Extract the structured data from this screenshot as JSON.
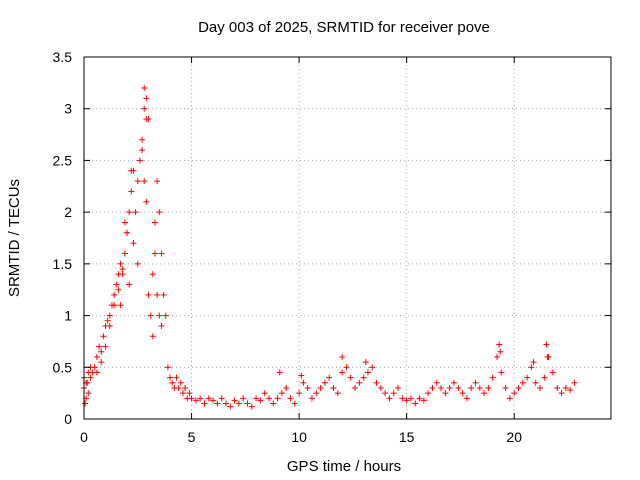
{
  "chart_data": {
    "type": "scatter",
    "title": "Day 003 of 2025, SRMTID for receiver pove",
    "xlabel": "GPS time / hours",
    "ylabel": "SRMTID / TECUs",
    "xlim": [
      0,
      24.5
    ],
    "ylim": [
      0,
      3.5
    ],
    "x_ticks": [
      0,
      5,
      10,
      15,
      20
    ],
    "x_tick_labels": [
      "0",
      "5",
      "10",
      "15",
      "20"
    ],
    "y_ticks": [
      0,
      0.5,
      1,
      1.5,
      2,
      2.5,
      3,
      3.5
    ],
    "y_tick_labels": [
      "0",
      "0.5",
      "1",
      "1.5",
      "2",
      "2.5",
      "3",
      "3.5"
    ],
    "grid": true,
    "marker": "+",
    "color": "#ff0000",
    "series": [
      {
        "name": "SRMTID",
        "x": [
          0.0,
          0.1,
          0.2,
          0.3,
          0.4,
          0.5,
          0.6,
          0.7,
          0.8,
          0.9,
          1.0,
          1.1,
          1.2,
          1.3,
          1.4,
          1.5,
          1.6,
          1.7,
          1.8,
          1.9,
          2.0,
          2.1,
          2.2,
          2.3,
          2.4,
          2.5,
          2.6,
          2.7,
          2.8,
          2.9,
          3.0,
          3.1,
          3.2,
          3.3,
          3.4,
          3.5,
          3.6,
          3.7,
          3.8,
          3.9,
          4.0,
          4.1,
          4.2,
          4.3,
          4.4,
          4.5,
          4.6,
          4.7,
          4.8,
          4.9,
          5.0,
          5.2,
          5.4,
          5.6,
          5.8,
          6.0,
          6.2,
          6.4,
          6.6,
          6.8,
          7.0,
          7.2,
          7.4,
          7.6,
          7.8,
          8.0,
          8.2,
          8.4,
          8.6,
          8.8,
          9.0,
          9.2,
          9.4,
          9.6,
          9.8,
          10.0,
          10.2,
          10.4,
          10.6,
          10.8,
          11.0,
          11.2,
          11.4,
          11.6,
          11.8,
          12.0,
          12.2,
          12.4,
          12.6,
          12.8,
          13.0,
          13.2,
          13.4,
          13.6,
          13.8,
          14.0,
          14.2,
          14.4,
          14.6,
          14.8,
          15.0,
          15.2,
          15.4,
          15.6,
          15.8,
          16.0,
          16.2,
          16.4,
          16.6,
          16.8,
          17.0,
          17.2,
          17.4,
          17.6,
          17.8,
          18.0,
          18.2,
          18.4,
          18.6,
          18.8,
          19.0,
          19.2,
          19.4,
          19.6,
          19.8,
          20.0,
          20.2,
          20.4,
          20.6,
          20.8,
          21.0,
          21.2,
          21.4,
          21.6,
          21.8,
          22.0,
          22.2,
          22.4,
          22.6,
          22.8,
          2.8,
          2.9,
          3.0,
          2.7,
          2.2,
          2.0,
          1.8,
          1.6,
          1.4,
          1.2,
          1.0,
          0.8,
          0.6,
          3.2,
          3.3,
          3.4,
          3.5,
          3.6,
          2.5,
          2.3,
          2.1,
          1.9,
          1.7,
          2.9,
          2.8,
          0.0,
          0.1,
          0.2,
          0.3,
          0.05,
          0.15,
          19.3,
          19.35,
          20.9,
          21.5,
          21.55,
          12.0,
          13.1,
          10.1,
          9.1
        ],
        "y": [
          0.3,
          0.35,
          0.25,
          0.4,
          0.45,
          0.5,
          0.6,
          0.7,
          0.65,
          0.8,
          0.9,
          0.95,
          1.0,
          1.1,
          1.2,
          1.3,
          1.4,
          1.5,
          1.45,
          1.6,
          1.8,
          2.0,
          2.2,
          2.4,
          2.0,
          2.3,
          2.5,
          2.7,
          3.0,
          2.9,
          1.2,
          1.0,
          0.8,
          1.9,
          2.3,
          2.0,
          1.6,
          1.2,
          1.0,
          0.5,
          0.4,
          0.35,
          0.3,
          0.4,
          0.3,
          0.35,
          0.25,
          0.3,
          0.2,
          0.25,
          0.2,
          0.18,
          0.2,
          0.15,
          0.2,
          0.18,
          0.15,
          0.2,
          0.15,
          0.12,
          0.18,
          0.15,
          0.2,
          0.15,
          0.12,
          0.2,
          0.18,
          0.25,
          0.2,
          0.15,
          0.2,
          0.25,
          0.3,
          0.2,
          0.15,
          0.25,
          0.35,
          0.3,
          0.2,
          0.25,
          0.3,
          0.35,
          0.4,
          0.3,
          0.25,
          0.45,
          0.5,
          0.4,
          0.3,
          0.35,
          0.4,
          0.45,
          0.5,
          0.35,
          0.3,
          0.25,
          0.2,
          0.25,
          0.3,
          0.2,
          0.18,
          0.2,
          0.15,
          0.2,
          0.18,
          0.25,
          0.3,
          0.35,
          0.3,
          0.25,
          0.3,
          0.35,
          0.3,
          0.25,
          0.2,
          0.3,
          0.35,
          0.3,
          0.25,
          0.3,
          0.4,
          0.6,
          0.45,
          0.3,
          0.2,
          0.25,
          0.3,
          0.35,
          0.4,
          0.5,
          0.35,
          0.3,
          0.4,
          0.6,
          0.45,
          0.3,
          0.25,
          0.3,
          0.28,
          0.35,
          3.2,
          3.1,
          2.9,
          2.6,
          2.4,
          1.8,
          1.4,
          1.25,
          1.1,
          0.9,
          0.7,
          0.55,
          0.45,
          1.4,
          1.6,
          1.2,
          1.0,
          0.9,
          1.5,
          1.7,
          1.3,
          1.9,
          1.1,
          2.1,
          2.3,
          0.4,
          0.2,
          0.45,
          0.5,
          0.15,
          0.35,
          0.72,
          0.65,
          0.55,
          0.72,
          0.6,
          0.6,
          0.55,
          0.42,
          0.45
        ]
      }
    ]
  }
}
